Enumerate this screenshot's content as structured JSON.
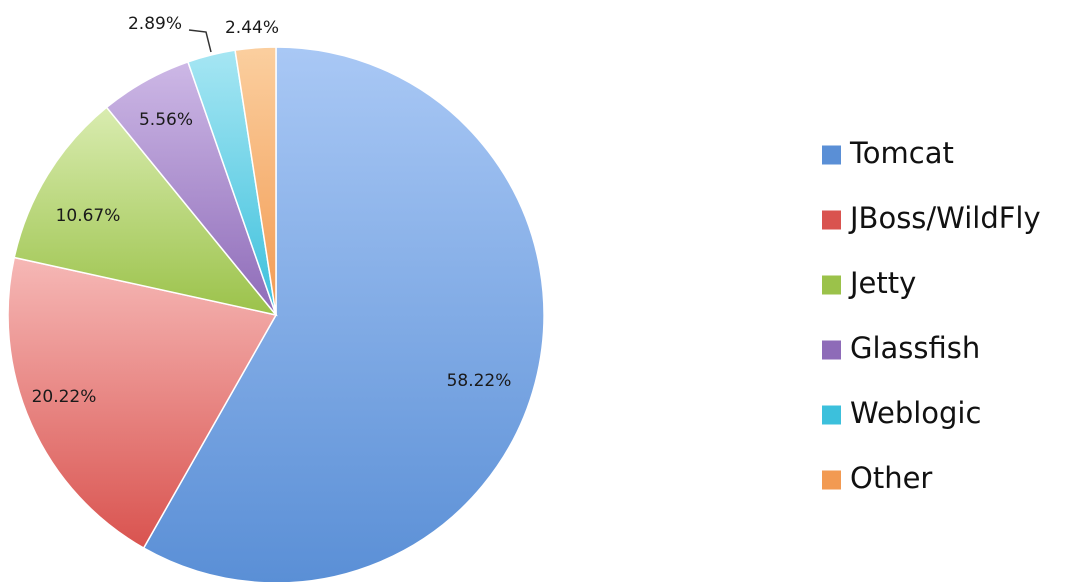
{
  "chart_data": {
    "type": "pie",
    "title": "",
    "start_angle_deg": 0,
    "direction": "clockwise",
    "legend_position": "right",
    "slices": [
      {
        "label": "Tomcat",
        "value": 58.22,
        "value_label": "58.22%",
        "color": "#5a8fd6",
        "color_light": "#a9c8f5"
      },
      {
        "label": "JBoss/WildFly",
        "value": 20.22,
        "value_label": "20.22%",
        "color": "#d9534f",
        "color_light": "#f6b8b6"
      },
      {
        "label": "Jetty",
        "value": 10.67,
        "value_label": "10.67%",
        "color": "#9bc24a",
        "color_light": "#d9ecb0"
      },
      {
        "label": "Glassfish",
        "value": 5.56,
        "value_label": "5.56%",
        "color": "#8e6bb8",
        "color_light": "#cdb8e6"
      },
      {
        "label": "Weblogic",
        "value": 2.89,
        "value_label": "2.89%",
        "color": "#3cc0dc",
        "color_light": "#a6e6f3"
      },
      {
        "label": "Other",
        "value": 2.44,
        "value_label": "2.44%",
        "color": "#f29a52",
        "color_light": "#fbcf9f"
      }
    ]
  }
}
